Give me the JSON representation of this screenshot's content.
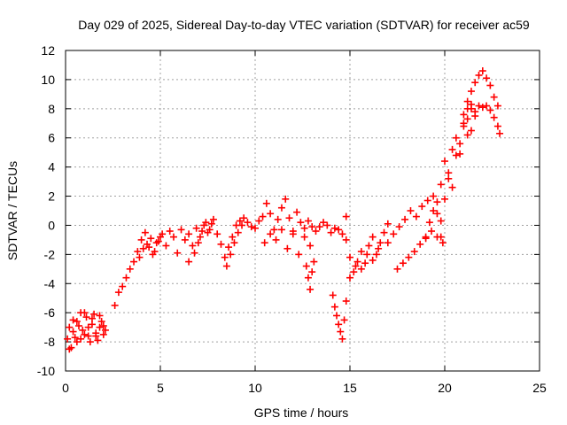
{
  "chart_data": {
    "type": "scatter",
    "title": "Day 029 of 2025, Sidereal Day-to-day VTEC variation (SDTVAR) for receiver ac59",
    "xlabel": "GPS time / hours",
    "ylabel": "SDTVAR / TECUs",
    "xlim": [
      0,
      25
    ],
    "ylim": [
      -10,
      12
    ],
    "xticks": [
      0,
      5,
      10,
      15,
      20,
      25
    ],
    "yticks": [
      -10,
      -8,
      -6,
      -4,
      -2,
      0,
      2,
      4,
      6,
      8,
      10,
      12
    ],
    "grid": true,
    "marker": "+",
    "series": [
      {
        "name": "SDTVAR",
        "color": "#ff0000",
        "x": [
          0.1,
          0.2,
          0.3,
          0.4,
          0.5,
          0.6,
          0.7,
          0.8,
          0.9,
          1.0,
          1.1,
          1.2,
          1.3,
          1.4,
          1.5,
          1.6,
          1.7,
          1.8,
          1.9,
          2.0,
          2.1,
          0.2,
          0.4,
          0.6,
          0.8,
          1.0,
          1.2,
          1.4,
          1.6,
          1.8,
          2.0,
          2.6,
          2.8,
          3.0,
          3.2,
          3.4,
          3.6,
          3.8,
          4.0,
          4.2,
          4.4,
          4.6,
          4.8,
          5.0,
          3.9,
          4.1,
          4.3,
          4.5,
          4.7,
          4.9,
          5.1,
          5.3,
          5.5,
          5.7,
          5.9,
          6.1,
          6.3,
          6.5,
          6.7,
          6.9,
          7.1,
          7.3,
          7.5,
          7.7,
          6.5,
          6.8,
          7.0,
          7.2,
          7.4,
          7.6,
          7.8,
          8.0,
          8.2,
          8.4,
          8.6,
          8.8,
          9.0,
          9.2,
          9.4,
          9.6,
          9.8,
          8.5,
          8.7,
          8.9,
          9.1,
          9.3,
          10.0,
          10.2,
          10.4,
          10.6,
          10.8,
          11.0,
          11.2,
          11.4,
          11.6,
          11.8,
          12.0,
          12.2,
          12.4,
          12.6,
          12.8,
          13.0,
          10.5,
          10.8,
          11.1,
          11.4,
          11.7,
          12.0,
          12.3,
          12.6,
          12.9,
          12.7,
          12.8,
          12.9,
          13.0,
          13.1,
          13.2,
          13.4,
          13.6,
          13.8,
          14.0,
          14.2,
          14.4,
          14.6,
          14.8,
          14.1,
          14.2,
          14.3,
          14.4,
          14.5,
          14.6,
          14.7,
          14.8,
          14.8,
          15.0,
          15.2,
          15.4,
          15.6,
          15.8,
          16.0,
          16.2,
          16.4,
          16.6,
          16.8,
          17.0,
          15.0,
          15.3,
          15.6,
          15.9,
          16.2,
          16.5,
          17.0,
          17.3,
          17.6,
          17.9,
          18.2,
          18.5,
          18.8,
          19.1,
          19.4,
          17.5,
          17.8,
          18.1,
          18.4,
          18.7,
          19.0,
          19.3,
          19.6,
          19.9,
          19.0,
          19.2,
          19.4,
          19.6,
          19.8,
          19.6,
          19.8,
          20.0,
          20.2,
          20.4,
          20.6,
          20.8,
          21.0,
          21.2,
          21.4,
          19.8,
          20.0,
          20.2,
          20.4,
          20.6,
          20.8,
          21.0,
          21.2,
          21.4,
          21.6,
          21.0,
          21.2,
          21.4,
          21.6,
          21.8,
          22.0,
          22.2,
          22.4,
          21.2,
          21.4,
          21.6,
          21.8,
          22.0,
          22.2,
          22.4,
          22.6,
          22.8,
          22.9,
          22.6,
          22.8
        ],
        "y": [
          -7.8,
          -7.0,
          -8.4,
          -6.5,
          -7.7,
          -8.0,
          -6.9,
          -6.0,
          -7.2,
          -7.5,
          -6.3,
          -7.6,
          -8.0,
          -6.8,
          -6.1,
          -7.4,
          -7.9,
          -7.0,
          -6.6,
          -6.9,
          -7.2,
          -8.5,
          -7.3,
          -6.6,
          -7.8,
          -6.0,
          -7.0,
          -6.4,
          -7.6,
          -6.2,
          -7.5,
          -5.5,
          -4.6,
          -4.2,
          -3.6,
          -3.0,
          -2.5,
          -1.8,
          -1.0,
          -0.5,
          -1.5,
          -2.0,
          -1.2,
          -0.8,
          -2.2,
          -1.6,
          -1.3,
          -0.9,
          -1.8,
          -1.1,
          -0.6,
          -1.4,
          -0.4,
          -0.8,
          -1.9,
          -0.3,
          -1.0,
          -0.6,
          -1.4,
          -0.2,
          -0.8,
          0.0,
          -0.5,
          0.1,
          -2.5,
          -1.9,
          -1.2,
          -0.4,
          0.2,
          -0.3,
          0.4,
          -0.6,
          -1.3,
          -2.2,
          -1.5,
          -0.8,
          0.0,
          0.3,
          0.5,
          0.2,
          -0.1,
          -2.8,
          -2.0,
          -1.2,
          -0.5,
          0.0,
          -0.2,
          0.3,
          0.6,
          1.5,
          0.8,
          -0.3,
          0.4,
          1.2,
          1.8,
          0.5,
          -0.6,
          0.9,
          0.2,
          -0.2,
          0.3,
          -0.1,
          -1.2,
          -0.6,
          -1.0,
          -0.3,
          -1.6,
          -0.4,
          -2.0,
          -0.8,
          -1.4,
          -2.8,
          -3.6,
          -4.4,
          -3.2,
          -2.5,
          -0.4,
          -0.1,
          0.2,
          0.0,
          -0.5,
          -0.2,
          -0.3,
          -0.6,
          0.6,
          -4.8,
          -5.6,
          -6.2,
          -6.8,
          -7.3,
          -7.8,
          -6.5,
          -5.2,
          -1.0,
          -2.2,
          -3.2,
          -2.5,
          -1.8,
          -2.6,
          -1.4,
          -0.8,
          -2.0,
          -1.2,
          -0.5,
          0.1,
          -3.6,
          -2.8,
          -3.0,
          -2.0,
          -2.4,
          -1.6,
          -1.2,
          -0.6,
          -0.1,
          0.4,
          1.0,
          0.6,
          1.3,
          1.7,
          2.0,
          -3.0,
          -2.6,
          -2.2,
          -1.8,
          -1.3,
          -0.9,
          -0.4,
          -0.8,
          -1.2,
          -0.8,
          0.2,
          1.0,
          1.6,
          0.3,
          0.8,
          2.8,
          4.4,
          3.2,
          5.2,
          6.0,
          4.9,
          6.8,
          7.3,
          6.5,
          -0.8,
          1.8,
          3.6,
          2.6,
          4.8,
          5.6,
          7.0,
          6.2,
          8.0,
          7.5,
          7.6,
          8.0,
          8.3,
          7.8,
          8.2,
          8.1,
          8.2,
          7.9,
          8.5,
          9.2,
          9.8,
          10.3,
          10.6,
          10.1,
          9.6,
          8.8,
          8.2,
          6.3,
          7.4,
          6.8
        ]
      }
    ]
  }
}
